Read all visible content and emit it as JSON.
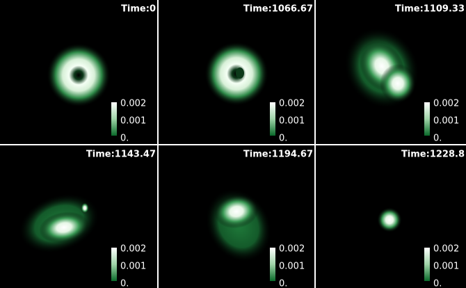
{
  "panels": [
    {
      "title": "Time:0",
      "colorbar": {
        "ticks": [
          "0.002",
          "0.001",
          "0."
        ]
      }
    },
    {
      "title": "Time:1066.67",
      "colorbar": {
        "ticks": [
          "0.002",
          "0.001",
          "0."
        ]
      }
    },
    {
      "title": "Time:1109.33",
      "colorbar": {
        "ticks": [
          "0.002",
          "0.001",
          "0."
        ]
      }
    },
    {
      "title": "Time:1143.47",
      "colorbar": {
        "ticks": [
          "0.002",
          "0.001",
          "0."
        ]
      }
    },
    {
      "title": "Time:1194.67",
      "colorbar": {
        "ticks": [
          "0.002",
          "0.001",
          "0."
        ]
      }
    },
    {
      "title": "Time:1228.8",
      "colorbar": {
        "ticks": [
          "0.002",
          "0.001",
          "0."
        ]
      }
    }
  ]
}
